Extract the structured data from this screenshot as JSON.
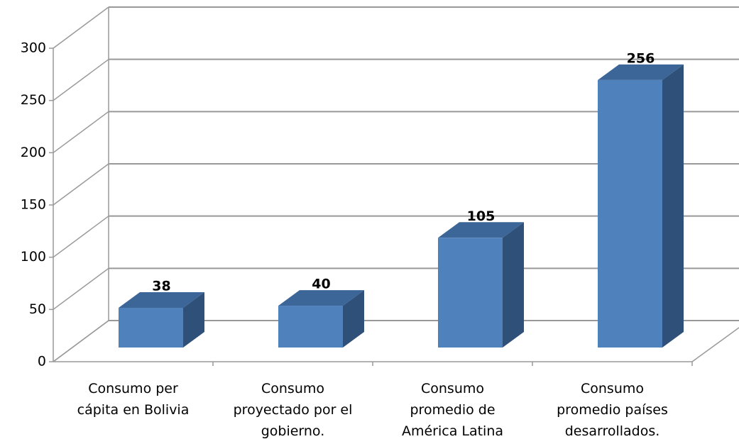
{
  "chart_data": {
    "type": "bar3d",
    "categories": [
      "Consumo per cápita en Bolivia",
      "Consumo proyectado por el gobierno.",
      "Consumo promedio de América Latina",
      "Consumo promedio países desarrollados."
    ],
    "values": [
      38,
      40,
      105,
      256
    ],
    "color": "#4f81bd",
    "ylim": [
      0,
      300
    ],
    "yticks": [
      0,
      50,
      100,
      150,
      200,
      250,
      300
    ],
    "grid": true
  }
}
